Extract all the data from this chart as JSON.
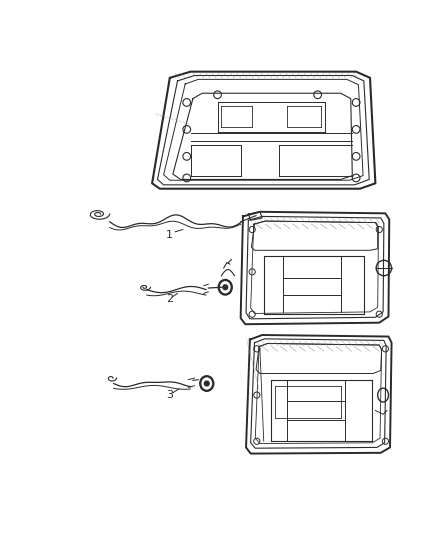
{
  "background_color": "#ffffff",
  "figsize": [
    4.38,
    5.33
  ],
  "dpi": 100,
  "line_color": "#2a2a2a",
  "gray_color": "#888888",
  "dark_color": "#111111"
}
